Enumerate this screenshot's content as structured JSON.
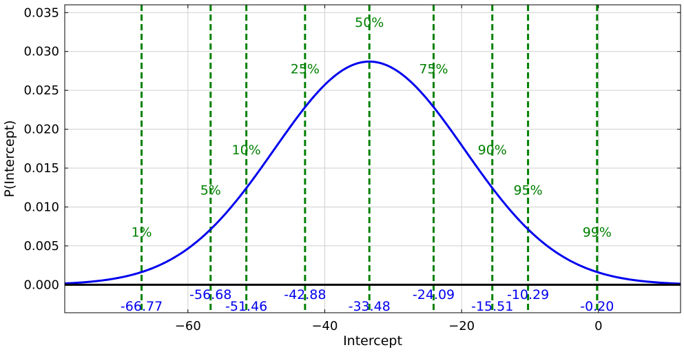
{
  "chart_data": {
    "type": "line",
    "title": "",
    "xlabel": "Intercept",
    "ylabel": "P(Intercept)",
    "xlim": [
      -78,
      12
    ],
    "ylim": [
      -0.0036,
      0.036
    ],
    "grid": true,
    "x_ticks": [
      -60,
      -40,
      -20,
      0
    ],
    "x_tick_labels": [
      "−60",
      "−40",
      "−20",
      "0"
    ],
    "y_ticks": [
      0.0,
      0.005,
      0.01,
      0.015,
      0.02,
      0.025,
      0.03,
      0.035
    ],
    "y_tick_labels": [
      "0.000",
      "0.005",
      "0.010",
      "0.015",
      "0.020",
      "0.025",
      "0.030",
      "0.035"
    ],
    "series": [
      {
        "color": "#0000ee",
        "distribution": "normal",
        "mean": -33.48,
        "sd": 13.9
      }
    ],
    "baseline": {
      "y": 0,
      "color": "#000000"
    },
    "percentiles": [
      {
        "label": "1%",
        "value": -66.77,
        "value_label": "-66.77",
        "label_y": 0.0068,
        "value_y": -0.0027
      },
      {
        "label": "5%",
        "value": -56.68,
        "value_label": "-56.68",
        "label_y": 0.0122,
        "value_y": -0.0012
      },
      {
        "label": "10%",
        "value": -51.46,
        "value_label": "-51.46",
        "label_y": 0.0174,
        "value_y": -0.0027
      },
      {
        "label": "25%",
        "value": -42.88,
        "value_label": "-42.88",
        "label_y": 0.0278,
        "value_y": -0.0012
      },
      {
        "label": "50%",
        "value": -33.48,
        "value_label": "-33.48",
        "label_y": 0.0338,
        "value_y": -0.0027
      },
      {
        "label": "75%",
        "value": -24.09,
        "value_label": "-24.09",
        "label_y": 0.0278,
        "value_y": -0.0012
      },
      {
        "label": "90%",
        "value": -15.51,
        "value_label": "-15.51",
        "label_y": 0.0174,
        "value_y": -0.0027
      },
      {
        "label": "95%",
        "value": -10.29,
        "value_label": "-10.29",
        "label_y": 0.0122,
        "value_y": -0.0012
      },
      {
        "label": "99%",
        "value": -0.2,
        "value_label": "-0.20",
        "label_y": 0.0068,
        "value_y": -0.0027
      }
    ],
    "percentile_line_color": "#008000",
    "percentile_label_color": "#008000",
    "value_label_color": "#0000ee"
  }
}
